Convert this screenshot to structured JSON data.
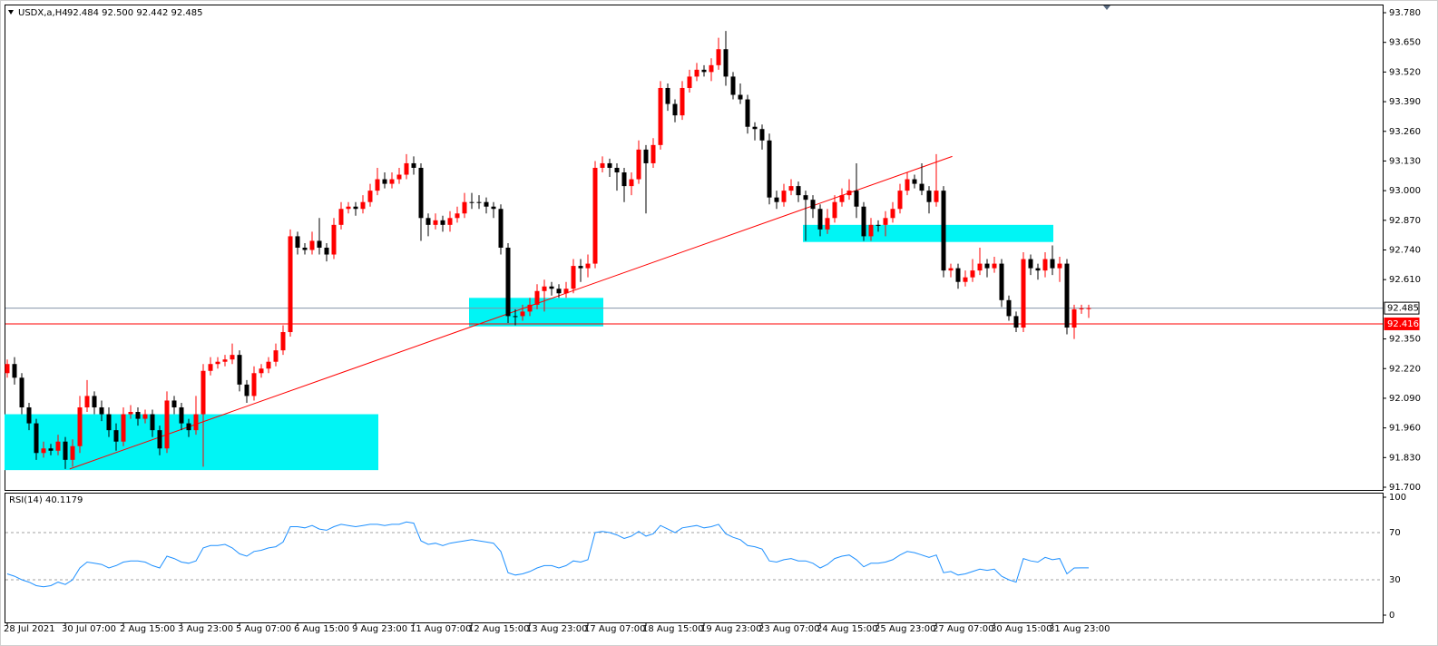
{
  "chart_data": {
    "type": "candlestick",
    "header": {
      "symbol": "USDX,a,H4",
      "ohlc": "92.484 92.500 92.442 92.485"
    },
    "categories": [
      "28 Jul 2021",
      null,
      null,
      null,
      null,
      null,
      null,
      null,
      "30 Jul 07:00",
      null,
      null,
      null,
      null,
      null,
      null,
      null,
      "2 Aug 15:00",
      null,
      null,
      null,
      null,
      null,
      null,
      null,
      "3 Aug 23:00",
      null,
      null,
      null,
      null,
      null,
      null,
      null,
      "5 Aug 07:00",
      null,
      null,
      null,
      null,
      null,
      null,
      null,
      "6 Aug 15:00",
      null,
      null,
      null,
      null,
      null,
      null,
      null,
      "9 Aug 23:00",
      null,
      null,
      null,
      null,
      null,
      null,
      null,
      "11 Aug 07:00",
      null,
      null,
      null,
      null,
      null,
      null,
      null,
      "12 Aug 15:00",
      null,
      null,
      null,
      null,
      null,
      null,
      null,
      "13 Aug 23:00",
      null,
      null,
      null,
      null,
      null,
      null,
      null,
      "17 Aug 07:00",
      null,
      null,
      null,
      null,
      null,
      null,
      null,
      "18 Aug 15:00",
      null,
      null,
      null,
      null,
      null,
      null,
      null,
      "19 Aug 23:00",
      null,
      null,
      null,
      null,
      null,
      null,
      null,
      "23 Aug 07:00",
      null,
      null,
      null,
      null,
      null,
      null,
      null,
      "24 Aug 15:00",
      null,
      null,
      null,
      null,
      null,
      null,
      null,
      "25 Aug 23:00",
      null,
      null,
      null,
      null,
      null,
      null,
      null,
      "27 Aug 07:00",
      null,
      null,
      null,
      null,
      null,
      null,
      null,
      "30 Aug 15:00",
      null,
      null,
      null,
      null,
      null,
      null,
      null,
      "31 Aug 23:00",
      null,
      null,
      null,
      null,
      null
    ],
    "open": [
      92.2,
      92.24,
      92.18,
      92.05,
      91.98,
      91.85,
      91.87,
      91.86,
      91.9,
      91.82,
      91.88,
      92.05,
      92.1,
      92.05,
      92.02,
      91.95,
      91.9,
      92.02,
      92.03,
      92.0,
      92.02,
      91.95,
      91.87,
      92.08,
      92.05,
      91.98,
      91.95,
      92.02,
      92.21,
      92.24,
      92.25,
      92.26,
      92.28,
      92.15,
      92.1,
      92.2,
      92.22,
      92.25,
      92.3,
      92.38,
      92.8,
      92.75,
      92.74,
      92.78,
      92.75,
      92.72,
      92.85,
      92.92,
      92.93,
      92.92,
      92.95,
      93.0,
      93.05,
      93.03,
      93.05,
      93.07,
      93.12,
      93.1,
      92.88,
      92.85,
      92.87,
      92.85,
      92.88,
      92.9,
      92.95,
      92.95,
      92.95,
      92.93,
      92.92,
      92.75,
      92.45,
      92.45,
      92.47,
      92.5,
      92.56,
      92.58,
      92.57,
      92.55,
      92.57,
      92.67,
      92.66,
      92.68,
      93.1,
      93.12,
      93.1,
      93.08,
      93.02,
      93.05,
      93.18,
      93.12,
      93.2,
      93.45,
      93.38,
      93.33,
      93.45,
      93.5,
      93.53,
      93.52,
      93.55,
      93.62,
      93.5,
      93.42,
      93.4,
      93.28,
      93.27,
      93.22,
      92.97,
      92.95,
      93.0,
      93.02,
      92.98,
      92.96,
      92.92,
      92.83,
      92.88,
      92.95,
      92.98,
      93.0,
      92.93,
      92.8,
      92.85,
      92.85,
      92.88,
      92.92,
      93.0,
      93.05,
      93.03,
      93.0,
      92.95,
      93.0,
      92.65,
      92.66,
      92.6,
      92.62,
      92.65,
      92.68,
      92.66,
      92.68,
      92.52,
      92.45,
      92.4,
      92.7,
      92.66,
      92.65,
      92.7,
      92.66,
      92.68,
      92.4,
      92.48,
      92.484
    ],
    "high": [
      92.26,
      92.27,
      92.2,
      92.07,
      92.0,
      91.9,
      91.89,
      91.93,
      91.92,
      91.91,
      92.1,
      92.17,
      92.12,
      92.08,
      92.05,
      91.98,
      92.05,
      92.06,
      92.05,
      92.04,
      92.04,
      91.97,
      92.12,
      92.1,
      92.07,
      92.0,
      92.1,
      92.24,
      92.27,
      92.27,
      92.28,
      92.33,
      92.3,
      92.17,
      92.23,
      92.24,
      92.27,
      92.33,
      92.41,
      92.83,
      92.82,
      92.77,
      92.82,
      92.88,
      92.77,
      92.88,
      92.95,
      92.95,
      92.95,
      92.98,
      93.03,
      93.1,
      93.08,
      93.08,
      93.1,
      93.16,
      93.15,
      93.12,
      92.9,
      92.9,
      92.89,
      92.91,
      92.93,
      92.99,
      92.99,
      92.98,
      92.97,
      92.95,
      92.94,
      92.77,
      92.48,
      92.5,
      92.53,
      92.59,
      92.61,
      92.6,
      92.59,
      92.6,
      92.7,
      92.7,
      92.72,
      93.13,
      93.15,
      93.14,
      93.12,
      93.1,
      93.08,
      93.22,
      93.2,
      93.23,
      93.48,
      93.47,
      93.4,
      93.48,
      93.53,
      93.56,
      93.55,
      93.58,
      93.67,
      93.7,
      93.52,
      93.47,
      93.42,
      93.3,
      93.29,
      93.25,
      93.0,
      93.03,
      93.05,
      93.04,
      93.0,
      92.98,
      92.94,
      92.92,
      92.98,
      93.01,
      93.05,
      93.12,
      92.95,
      92.88,
      92.87,
      92.91,
      92.95,
      93.03,
      93.08,
      93.07,
      93.12,
      93.02,
      93.16,
      93.02,
      92.68,
      92.68,
      92.65,
      92.7,
      92.75,
      92.7,
      92.71,
      92.7,
      92.54,
      92.47,
      92.73,
      92.72,
      92.68,
      92.73,
      92.76,
      92.71,
      92.7,
      92.5,
      92.5,
      92.5
    ],
    "low": [
      92.18,
      92.15,
      92.02,
      91.95,
      91.82,
      91.83,
      91.84,
      91.84,
      91.78,
      91.79,
      91.85,
      92.03,
      92.02,
      91.99,
      91.92,
      91.86,
      91.88,
      92.0,
      91.97,
      91.98,
      91.92,
      91.84,
      91.85,
      92.02,
      91.95,
      91.92,
      91.93,
      91.79,
      92.19,
      92.22,
      92.23,
      92.24,
      92.12,
      92.07,
      92.08,
      92.18,
      92.2,
      92.23,
      92.28,
      92.36,
      92.72,
      92.72,
      92.72,
      92.72,
      92.69,
      92.7,
      92.83,
      92.9,
      92.89,
      92.9,
      92.93,
      92.98,
      93.01,
      93.01,
      93.03,
      93.05,
      93.07,
      92.78,
      92.8,
      92.83,
      92.82,
      92.82,
      92.86,
      92.88,
      92.92,
      92.92,
      92.9,
      92.88,
      92.72,
      92.42,
      92.41,
      92.43,
      92.45,
      92.48,
      92.47,
      92.54,
      92.53,
      92.53,
      92.55,
      92.6,
      92.62,
      92.66,
      93.08,
      93.06,
      93.0,
      92.95,
      92.98,
      93.03,
      92.9,
      93.1,
      93.18,
      93.35,
      93.3,
      93.31,
      93.43,
      93.48,
      93.5,
      93.48,
      93.53,
      93.46,
      93.4,
      93.38,
      93.25,
      93.22,
      93.18,
      92.94,
      92.92,
      92.93,
      92.98,
      92.95,
      92.78,
      92.88,
      92.8,
      92.81,
      92.86,
      92.93,
      92.96,
      92.88,
      92.78,
      92.78,
      92.82,
      92.8,
      92.86,
      92.9,
      92.98,
      93.01,
      92.98,
      92.9,
      92.93,
      92.62,
      92.62,
      92.57,
      92.58,
      92.6,
      92.63,
      92.62,
      92.64,
      92.49,
      92.43,
      92.38,
      92.38,
      92.63,
      92.61,
      92.62,
      92.63,
      92.6,
      92.37,
      92.35,
      92.46,
      92.442
    ],
    "close": [
      92.24,
      92.18,
      92.05,
      91.98,
      91.85,
      91.87,
      91.86,
      91.9,
      91.82,
      91.88,
      92.05,
      92.1,
      92.05,
      92.02,
      91.95,
      91.9,
      92.02,
      92.03,
      92.0,
      92.02,
      91.95,
      91.87,
      92.08,
      92.05,
      91.98,
      91.95,
      92.02,
      92.21,
      92.24,
      92.25,
      92.26,
      92.28,
      92.15,
      92.1,
      92.2,
      92.22,
      92.25,
      92.3,
      92.38,
      92.8,
      92.75,
      92.74,
      92.78,
      92.75,
      92.72,
      92.85,
      92.92,
      92.93,
      92.92,
      92.95,
      93.0,
      93.05,
      93.03,
      93.05,
      93.07,
      93.12,
      93.1,
      92.88,
      92.85,
      92.87,
      92.85,
      92.88,
      92.9,
      92.95,
      92.95,
      92.95,
      92.93,
      92.92,
      92.75,
      92.45,
      92.45,
      92.47,
      92.5,
      92.56,
      92.58,
      92.57,
      92.55,
      92.57,
      92.67,
      92.66,
      92.68,
      93.1,
      93.12,
      93.1,
      93.08,
      93.02,
      93.05,
      93.18,
      93.12,
      93.2,
      93.45,
      93.38,
      93.33,
      93.45,
      93.5,
      93.53,
      93.52,
      93.55,
      93.62,
      93.5,
      93.42,
      93.4,
      93.28,
      93.27,
      93.22,
      92.97,
      92.95,
      93.0,
      93.02,
      92.98,
      92.96,
      92.92,
      92.83,
      92.88,
      92.95,
      92.98,
      93.0,
      92.93,
      92.8,
      92.85,
      92.85,
      92.88,
      92.92,
      93.0,
      93.05,
      93.03,
      93.0,
      92.95,
      93.0,
      92.65,
      92.66,
      92.6,
      92.62,
      92.65,
      92.68,
      92.66,
      92.68,
      92.52,
      92.45,
      92.4,
      92.7,
      92.66,
      92.65,
      92.7,
      92.66,
      92.68,
      92.4,
      92.48,
      92.484,
      92.485
    ],
    "up_color": "#ff0000",
    "down_color": "#000000",
    "ylim": [
      91.7,
      93.78
    ],
    "yticks": [
      {
        "value": 93.78,
        "label": "93.780"
      },
      {
        "value": 93.65,
        "label": "93.650"
      },
      {
        "value": 93.52,
        "label": "93.520"
      },
      {
        "value": 93.39,
        "label": "93.390"
      },
      {
        "value": 93.26,
        "label": "93.260"
      },
      {
        "value": 93.13,
        "label": "93.130"
      },
      {
        "value": 93.0,
        "label": "93.000"
      },
      {
        "value": 92.87,
        "label": "92.870"
      },
      {
        "value": 92.74,
        "label": "92.740"
      },
      {
        "value": 92.61,
        "label": "92.610"
      },
      {
        "value": 92.35,
        "label": "92.350"
      },
      {
        "value": 92.22,
        "label": "92.220"
      },
      {
        "value": 92.09,
        "label": "92.090"
      },
      {
        "value": 91.96,
        "label": "91.960"
      },
      {
        "value": 91.83,
        "label": "91.830"
      },
      {
        "value": 91.7,
        "label": "91.700"
      }
    ],
    "price_lines": [
      {
        "value": 92.485,
        "color": "#8494a8"
      },
      {
        "value": 92.416,
        "color": "#ff0000"
      }
    ],
    "rectangles": [
      {
        "from": 0,
        "to": 51,
        "top": 92.02,
        "bottom": 91.775,
        "color": "#00f5f5"
      },
      {
        "from": 64,
        "to": 82,
        "top": 92.53,
        "bottom": 92.405,
        "color": "#00f5f5"
      },
      {
        "from": 110,
        "to": 144,
        "top": 92.85,
        "bottom": 92.775,
        "color": "#00f5f5"
      }
    ],
    "trendline": {
      "x": [
        8.6,
        130.2
      ],
      "y": [
        91.78,
        93.15
      ],
      "color": "#ff0000"
    },
    "indicator": {
      "type": "line",
      "label": "RSI(14) 40.1179",
      "color": "#1e90ff",
      "ylim": [
        0,
        100
      ],
      "yticks": [
        100,
        70,
        30,
        0
      ],
      "values": [
        35,
        33,
        30,
        28,
        25,
        24,
        25,
        28,
        26,
        30,
        40,
        45,
        44,
        43,
        40,
        42,
        45,
        46,
        46,
        45,
        42,
        40,
        50,
        48,
        45,
        44,
        46,
        57,
        59,
        59,
        60,
        57,
        52,
        50,
        54,
        55,
        57,
        58,
        62,
        75,
        75,
        74,
        76,
        73,
        72,
        75,
        77,
        76,
        75,
        76,
        77,
        77,
        76,
        77,
        77,
        79,
        78,
        63,
        60,
        61,
        59,
        61,
        62,
        63,
        64,
        63,
        62,
        61,
        54,
        36,
        34,
        35,
        37,
        40,
        42,
        42,
        40,
        42,
        46,
        45,
        47,
        70,
        71,
        70,
        68,
        65,
        67,
        71,
        67,
        69,
        76,
        73,
        70,
        74,
        75,
        76,
        74,
        75,
        77,
        69,
        66,
        64,
        59,
        58,
        56,
        46,
        45,
        47,
        48,
        46,
        46,
        44,
        40,
        43,
        48,
        50,
        51,
        47,
        41,
        44,
        44,
        45,
        47,
        51,
        54,
        53,
        51,
        49,
        51,
        36,
        37,
        34,
        35,
        37,
        39,
        38,
        39,
        33,
        30,
        28,
        48,
        46,
        45,
        49,
        47,
        48,
        35,
        40,
        40.1,
        40.1179
      ]
    }
  }
}
